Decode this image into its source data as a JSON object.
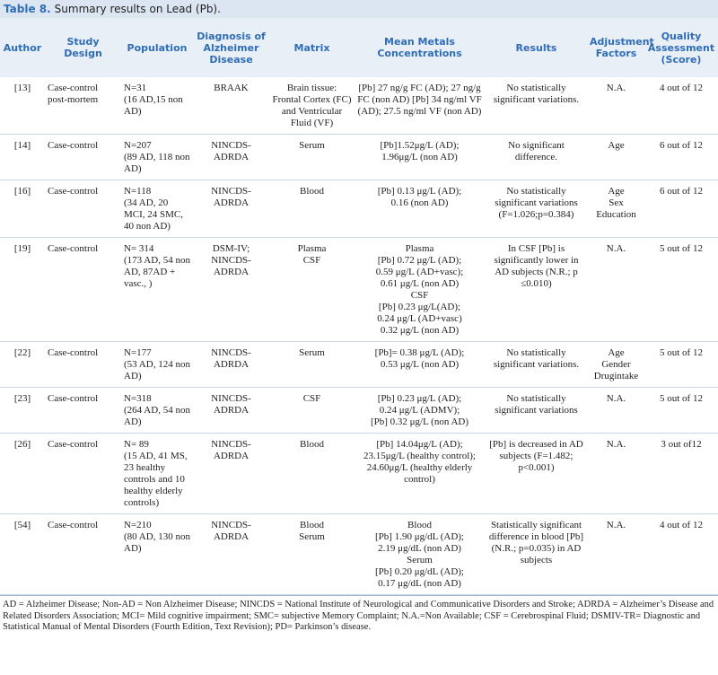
{
  "title": {
    "label": "Table 8.",
    "text": "Summary results on Lead (Pb)."
  },
  "table": {
    "header": [
      "Author",
      "Study Design",
      "Population",
      "Diagnosis of Alzheimer Disease",
      "Matrix",
      "Mean Metals Concentrations",
      "Results",
      "Adjustment Factors",
      "Quality Assessment (Score)"
    ],
    "rows": [
      [
        "[13]",
        "Case-control post-mortem",
        "N=31\n(16 AD,15 non AD)",
        "BRAAK",
        "Brain tissue: Frontal Cortex (FC) and Ventricular Fluid (VF)",
        "[Pb] 27 ng/g FC (AD); 27 ng/g FC (non AD) [Pb] 34 ng/ml VF (AD); 27.5 ng/ml VF (non AD)",
        "No statistically significant variations.",
        "N.A.",
        "4 out of 12"
      ],
      [
        "[14]",
        "Case-control",
        "N=207\n(89 AD, 118 non AD)",
        "NINCDS-ADRDA",
        "Serum",
        "[Pb]1.52μg/L (AD);\n1.96μg/L (non AD)",
        "No significant difference.",
        "Age",
        "6 out of 12"
      ],
      [
        "[16]",
        "Case-control",
        "N=118\n(34 AD, 20 MCI, 24 SMC, 40 non AD)",
        "NINCDS-ADRDA",
        "Blood",
        "[Pb] 0.13 μg/L (AD);\n0.16 (non AD)",
        "No statistically significant variations (F=1.026;p=0.384)",
        "Age\nSex\nEducation",
        "6 out of 12"
      ],
      [
        "[19]",
        "Case-control",
        "N= 314\n(173 AD, 54 non AD, 87AD + vasc., )",
        "DSM-IV; NINCDS-ADRDA",
        "Plasma\nCSF",
        "Plasma\n[Pb] 0.72 μg/L (AD);\n0.59 μg/L (AD+vasc);\n0.61 μg/L (non AD)\nCSF\n[Pb] 0.23 μg/L(AD);\n0.24 μg/L (AD+vasc)\n0.32 μg/L (non AD)",
        "In CSF [Pb] is significantly lower in AD subjects (N.R.; p ≤0.010)",
        "N.A.",
        "5 out of 12"
      ],
      [
        "[22]",
        "Case-control",
        "N=177\n(53 AD, 124 non AD)",
        "NINCDS-ADRDA",
        "Serum",
        "[Pb]= 0.38 μg/L (AD);\n0.53 μg/L (non AD)",
        "No statistically significant variations.",
        "Age\nGender\nDrugintake",
        "5 out of 12"
      ],
      [
        "[23]",
        "Case-control",
        "N=318\n(264 AD, 54 non AD)",
        "NINCDS-ADRDA",
        "CSF",
        "[Pb] 0.23 μg/L (AD);\n0.24 μg/L (ADMV);\n[Pb] 0.32 μg/L (non AD)",
        "No statistically significant variations",
        "N.A.",
        "5 out of 12"
      ],
      [
        "[26]",
        "Case-control",
        "N= 89\n(15 AD, 41 MS, 23 healthy controls and 10 healthy elderly controls)",
        "NINCDS-ADRDA",
        "Blood",
        "[Pb] 14.04μg/L (AD);\n23.15μg/L (healthy control); 24.60μg/L (healthy elderly control)",
        "[Pb] is decreased in AD subjects (F=1.482; p<0.001)",
        "N.A.",
        "3 out of12"
      ],
      [
        "[54]",
        "Case-control",
        "N=210\n(80 AD, 130 non AD)",
        "NINCDS-ADRDA",
        "Blood\nSerum",
        "Blood\n[Pb] 1.90 μg/dL (AD);\n2.19 μg/dL (non AD)\nSerum\n[Pb] 0.20 μg/dL (AD);\n0.17 μg/dL (non AD)",
        "Statistically significant difference in blood [Pb] (N.R.; p=0.035) in AD subjects",
        "N.A.",
        "4 out of 12"
      ]
    ]
  },
  "footnote": "AD = Alzheimer Disease; Non-AD = Non Alzheimer Disease; NINCDS = National Institute of Neurological and Communicative Disorders and Stroke; ADRDA = Alzheimer’s Disease and Related Disorders Association; MCI= Mild cognitive impairment; SMC= subjective Memory Complaint; N.A.=Non Available; CSF = Cerebrospinal Fluid; DSMIV-TR= Diagnostic and Statistical Manual of Mental Disorders (Fourth Edition, Text Revision); PD= Parkinson’s disease."
}
